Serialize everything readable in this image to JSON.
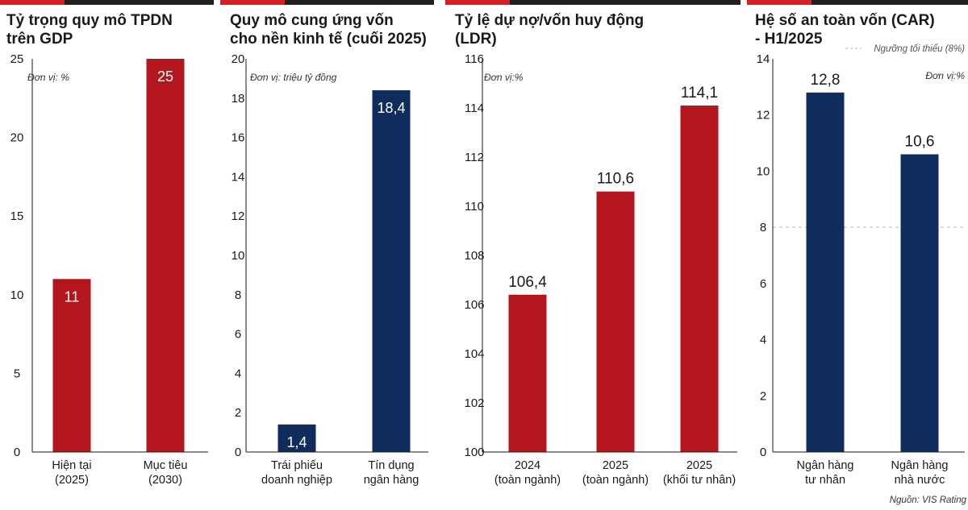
{
  "chart_data": [
    {
      "type": "bar",
      "title_lines": [
        "Tỷ trọng quy mô TPDN",
        "trên GDP"
      ],
      "unit": "Đơn vị: %",
      "categories": [
        [
          "Hiện tại",
          "(2025)"
        ],
        [
          "Mục tiêu",
          "(2030)"
        ]
      ],
      "values": [
        11,
        25
      ],
      "value_labels": [
        "11",
        "25"
      ],
      "colors": [
        "#b3161c",
        "#b3161c"
      ],
      "label_position": "inside",
      "ylim": [
        0,
        25
      ],
      "yticks": [
        0,
        5,
        10,
        15,
        20,
        25
      ],
      "ytick_labels": [
        "0",
        "5",
        "10",
        "15",
        "20",
        "25"
      ]
    },
    {
      "type": "bar",
      "title_lines": [
        "Quy mô cung ứng vốn",
        "cho nền kinh tế (cuối 2025)"
      ],
      "unit": "Đơn vị: triệu tỷ đồng",
      "categories": [
        [
          "Trái phiếu",
          "doanh nghiệp"
        ],
        [
          "Tín dụng",
          "ngân hàng"
        ]
      ],
      "values": [
        1.4,
        18.4
      ],
      "value_labels": [
        "1,4",
        "18,4"
      ],
      "colors": [
        "#0f2d5c",
        "#0f2d5c"
      ],
      "label_position": "inside",
      "ylim": [
        0,
        20
      ],
      "yticks": [
        0,
        2,
        4,
        6,
        8,
        10,
        12,
        14,
        16,
        18,
        20
      ],
      "ytick_labels": [
        "0",
        "2",
        "4",
        "6",
        "8",
        "10",
        "12",
        "14",
        "16",
        "18",
        "20"
      ]
    },
    {
      "type": "bar",
      "title_lines": [
        "Tỷ lệ dự nợ/vốn huy động",
        "(LDR)"
      ],
      "unit": "Đơn vị:%",
      "categories": [
        [
          "2024",
          "(toàn ngành)"
        ],
        [
          "2025",
          "(toàn ngành)"
        ],
        [
          "2025",
          "(khối tư nhân)"
        ]
      ],
      "values": [
        106.4,
        110.6,
        114.1
      ],
      "value_labels": [
        "106,4",
        "110,6",
        "114,1"
      ],
      "colors": [
        "#b3161c",
        "#b3161c",
        "#b3161c"
      ],
      "label_position": "above",
      "ylim": [
        100,
        116
      ],
      "yticks": [
        100,
        102,
        104,
        106,
        108,
        110,
        112,
        114,
        116
      ],
      "ytick_labels": [
        "100",
        "102",
        "104",
        "106",
        "108",
        "110",
        "112",
        "114",
        "116"
      ]
    },
    {
      "type": "bar",
      "title_lines": [
        "Hệ số an toàn vốn (CAR)",
        "- H1/2025"
      ],
      "unit": "Đơn vị:%",
      "legend": "Ngưỡng tối thiểu (8%)",
      "threshold": 8,
      "categories": [
        [
          "Ngân hàng",
          "tư nhân"
        ],
        [
          "Ngân hàng",
          "nhà nước"
        ]
      ],
      "values": [
        12.8,
        10.6
      ],
      "value_labels": [
        "12,8",
        "10,6"
      ],
      "colors": [
        "#0f2d5c",
        "#0f2d5c"
      ],
      "label_position": "above",
      "ylim": [
        0,
        14
      ],
      "yticks": [
        0,
        2,
        4,
        6,
        8,
        10,
        12,
        14
      ],
      "ytick_labels": [
        "0",
        "2",
        "4",
        "6",
        "8",
        "10",
        "12",
        "14"
      ],
      "source": "Nguồn: VIS Rating"
    }
  ],
  "colors": {
    "accent": "#d71f26",
    "dark_bar": "#231f20",
    "red_bar": "#b3161c",
    "navy_bar": "#0f2d5c"
  }
}
